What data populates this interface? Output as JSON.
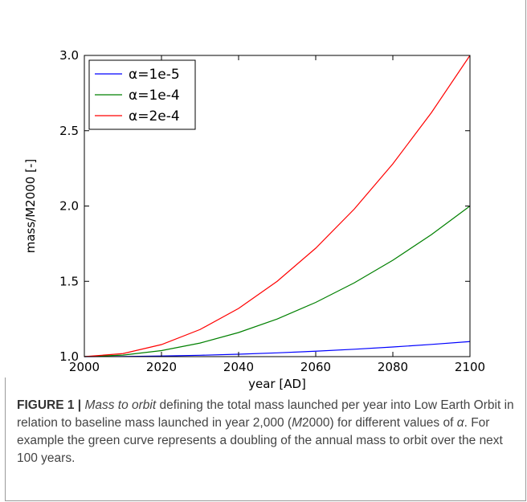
{
  "chart_data": {
    "type": "line",
    "title": "",
    "xlabel": "year [AD]",
    "ylabel": "mass/M2000 [-]",
    "xlim": [
      2000,
      2100
    ],
    "ylim": [
      1.0,
      3.0
    ],
    "xticks": [
      "2000",
      "2020",
      "2040",
      "2060",
      "2080",
      "2100"
    ],
    "yticks": [
      "1.0",
      "1.5",
      "2.0",
      "2.5",
      "3.0"
    ],
    "grid": false,
    "legend_position": "top-left",
    "series": [
      {
        "name": "α=1e-5",
        "color": "#0000ff",
        "x": [
          2000,
          2010,
          2020,
          2030,
          2040,
          2050,
          2060,
          2070,
          2080,
          2090,
          2100
        ],
        "y": [
          1.0,
          1.001,
          1.004,
          1.009,
          1.016,
          1.025,
          1.036,
          1.049,
          1.064,
          1.081,
          1.1
        ]
      },
      {
        "name": "α=1e-4",
        "color": "#008000",
        "x": [
          2000,
          2010,
          2020,
          2030,
          2040,
          2050,
          2060,
          2070,
          2080,
          2090,
          2100
        ],
        "y": [
          1.0,
          1.01,
          1.04,
          1.09,
          1.16,
          1.25,
          1.36,
          1.49,
          1.64,
          1.81,
          2.0
        ]
      },
      {
        "name": "α=2e-4",
        "color": "#ff0000",
        "x": [
          2000,
          2010,
          2020,
          2030,
          2040,
          2050,
          2060,
          2070,
          2080,
          2090,
          2100
        ],
        "y": [
          1.0,
          1.02,
          1.08,
          1.18,
          1.32,
          1.5,
          1.72,
          1.98,
          2.28,
          2.62,
          3.0
        ]
      }
    ]
  },
  "caption": {
    "label": "FIGURE 1 |",
    "italic_lead": "Mass to orbit",
    "text1": " defining the total mass launched per year into Low Earth Orbit in relation to baseline mass launched in year 2,000 (",
    "italic_ref": "M",
    "text2": "2000) for different values of ",
    "alpha": "α",
    "text3": ". For example the green curve represents a doubling of the annual mass to orbit over the next 100 years."
  }
}
